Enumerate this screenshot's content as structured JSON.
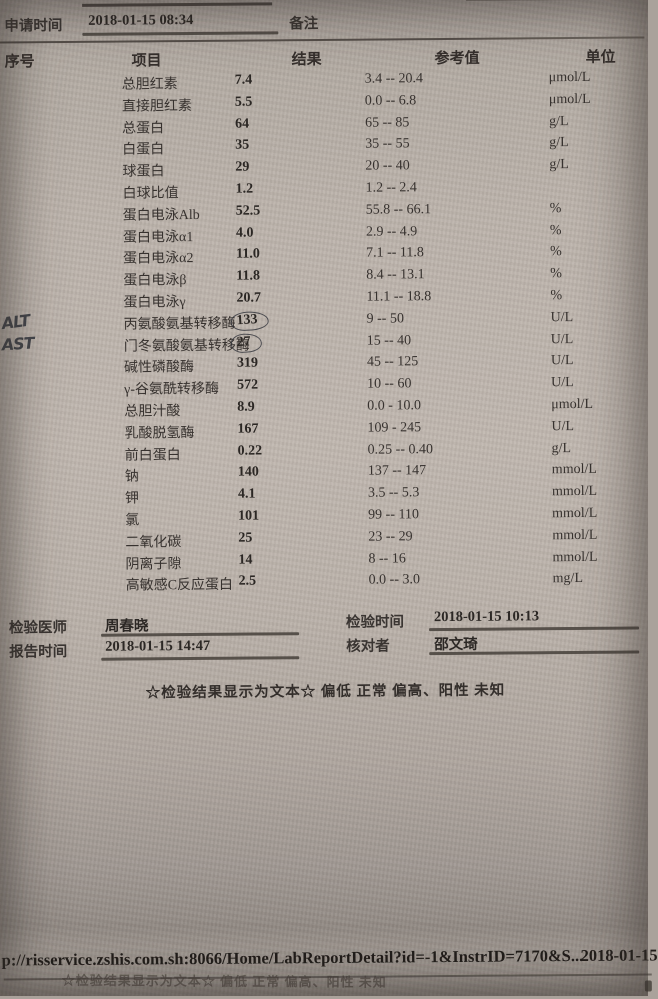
{
  "header": {
    "request_time_label": "申请时间",
    "request_time_value": "2018-01-15 08:34",
    "remark_label": "备注"
  },
  "columns": {
    "seq": "序号",
    "item": "项目",
    "result": "结果",
    "reference": "参考值",
    "unit": "单位"
  },
  "rows": [
    {
      "item": "总胆红素",
      "result": "7.4",
      "reference": "3.4 -- 20.4",
      "unit": "μmol/L"
    },
    {
      "item": "直接胆红素",
      "result": "5.5",
      "reference": "0.0 -- 6.8",
      "unit": "μmol/L"
    },
    {
      "item": "总蛋白",
      "result": "64",
      "reference": "65 -- 85",
      "unit": "g/L"
    },
    {
      "item": "白蛋白",
      "result": "35",
      "reference": "35 -- 55",
      "unit": "g/L"
    },
    {
      "item": "球蛋白",
      "result": "29",
      "reference": "20 -- 40",
      "unit": "g/L"
    },
    {
      "item": "白球比值",
      "result": "1.2",
      "reference": "1.2 -- 2.4",
      "unit": ""
    },
    {
      "item": "蛋白电泳Alb",
      "result": "52.5",
      "reference": "55.8 -- 66.1",
      "unit": "%"
    },
    {
      "item": "蛋白电泳α1",
      "result": "4.0",
      "reference": "2.9 -- 4.9",
      "unit": "%"
    },
    {
      "item": "蛋白电泳α2",
      "result": "11.0",
      "reference": "7.1 -- 11.8",
      "unit": "%"
    },
    {
      "item": "蛋白电泳β",
      "result": "11.8",
      "reference": "8.4 -- 13.1",
      "unit": "%"
    },
    {
      "item": "蛋白电泳γ",
      "result": "20.7",
      "reference": "11.1 -- 18.8",
      "unit": "%"
    },
    {
      "item": "丙氨酸氨基转移酶",
      "result": "133",
      "reference": "9 -- 50",
      "unit": "U/L",
      "circled": true,
      "annotation": "ALT"
    },
    {
      "item": "门冬氨酸氨基转移酶",
      "result": "27",
      "reference": "15 -- 40",
      "unit": "U/L",
      "circled": true,
      "annotation": "AST"
    },
    {
      "item": "碱性磷酸酶",
      "result": "319",
      "reference": "45 -- 125",
      "unit": "U/L"
    },
    {
      "item": "γ-谷氨酰转移酶",
      "result": "572",
      "reference": "10 -- 60",
      "unit": "U/L"
    },
    {
      "item": "总胆汁酸",
      "result": "8.9",
      "reference": "0.0 - 10.0",
      "unit": "μmol/L"
    },
    {
      "item": "乳酸脱氢酶",
      "result": "167",
      "reference": "109 - 245",
      "unit": "U/L"
    },
    {
      "item": "前白蛋白",
      "result": "0.22",
      "reference": "0.25 -- 0.40",
      "unit": "g/L"
    },
    {
      "item": "钠",
      "result": "140",
      "reference": "137 -- 147",
      "unit": "mmol/L"
    },
    {
      "item": "钾",
      "result": "4.1",
      "reference": "3.5 -- 5.3",
      "unit": "mmol/L"
    },
    {
      "item": "氯",
      "result": "101",
      "reference": "99 -- 110",
      "unit": "mmol/L"
    },
    {
      "item": "二氧化碳",
      "result": "25",
      "reference": "23 -- 29",
      "unit": "mmol/L"
    },
    {
      "item": "阴离子隙",
      "result": "14",
      "reference": "8 -- 16",
      "unit": "mmol/L"
    },
    {
      "item": "高敏感C反应蛋白",
      "result": "2.5",
      "reference": "0.0 -- 3.0",
      "unit": "mg/L"
    }
  ],
  "footer": {
    "examiner_label": "检验医师",
    "examiner_value": "周春晓",
    "exam_time_label": "检验时间",
    "exam_time_value": "2018-01-15 10:13",
    "report_time_label": "报告时间",
    "report_time_value": "2018-01-15 14:47",
    "checker_label": "核对者",
    "checker_value": "邵文琦",
    "note": "☆检验结果显示为文本☆ 偏低 正常 偏高、阳性 未知"
  },
  "statusbar": {
    "url": "p://risservice.zshis.com.sh:8066/Home/LabReportDetail?id=-1&InstrID=7170&S...",
    "date": "2018-01-15",
    "bleed_text": "☆检验结果显示为文本☆ 偏低 正常 偏高、阳性 未知"
  },
  "colors": {
    "paper": "#bcb3ab",
    "ink": "#332e2b",
    "pen": "#383b42"
  }
}
